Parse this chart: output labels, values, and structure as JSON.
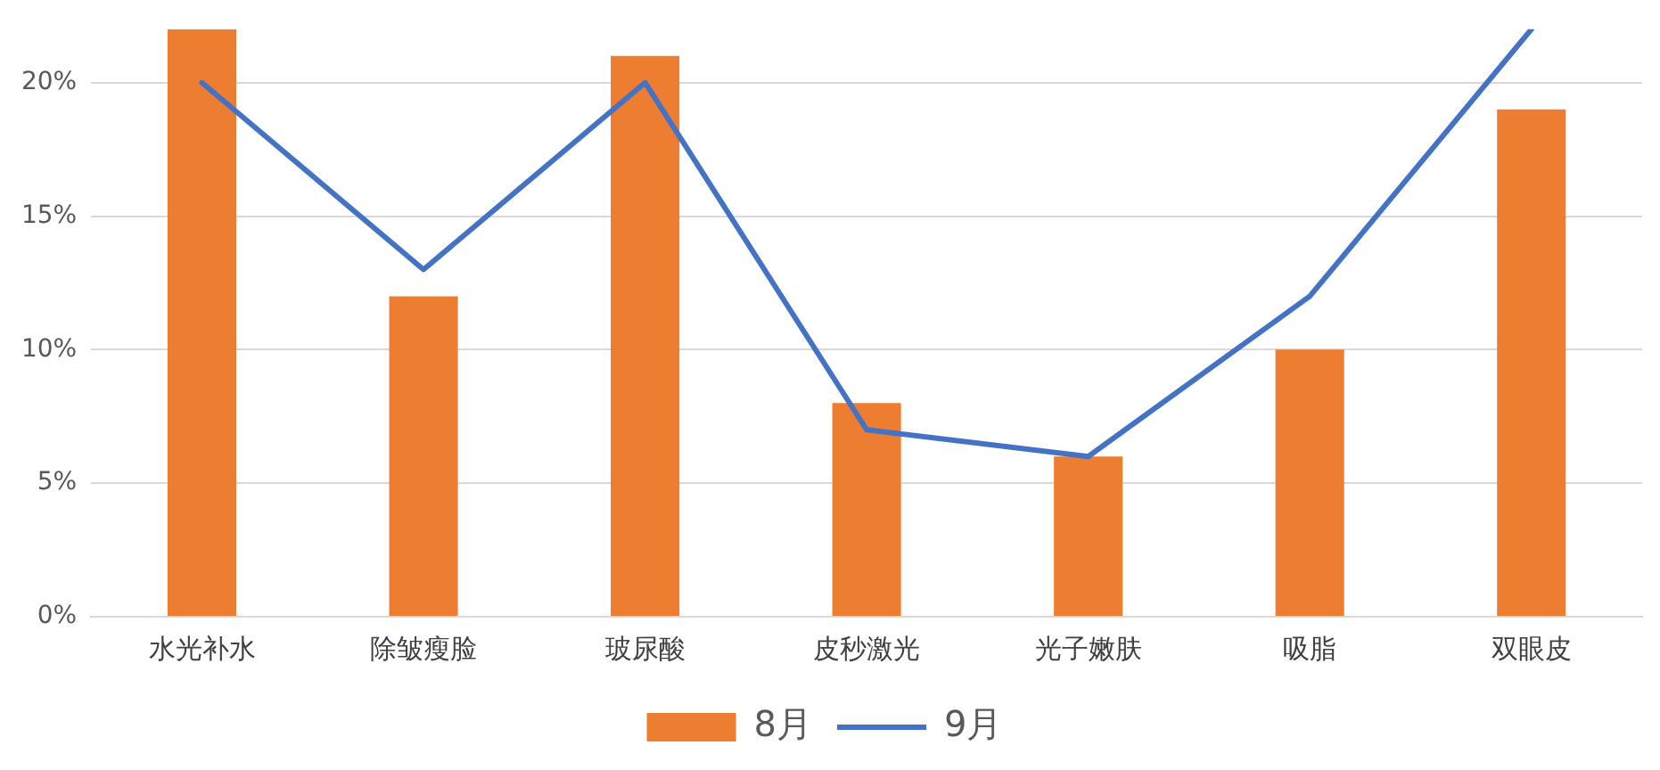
{
  "chart_data": {
    "type": "bar",
    "categories": [
      "水光补水",
      "除皱瘦脸",
      "玻尿酸",
      "皮秒激光",
      "光子嫩肤",
      "吸脂",
      "双眼皮"
    ],
    "series": [
      {
        "name": "8月",
        "color": "#ed7d31",
        "values": [
          22,
          12,
          21,
          8,
          6,
          10,
          19
        ]
      },
      {
        "name": "9月",
        "type": "line",
        "color": "#4472c4",
        "values": [
          20,
          13,
          20,
          7,
          6,
          12,
          22
        ]
      }
    ],
    "ylim": [
      0,
      22
    ],
    "yticks": [
      {
        "value": 0,
        "label": "0%"
      },
      {
        "value": 5,
        "label": "5%"
      },
      {
        "value": 10,
        "label": "10%"
      },
      {
        "value": 15,
        "label": "15%"
      },
      {
        "value": 20,
        "label": "20%"
      }
    ],
    "grid": "y",
    "legend": "bottom",
    "marker": "none"
  }
}
